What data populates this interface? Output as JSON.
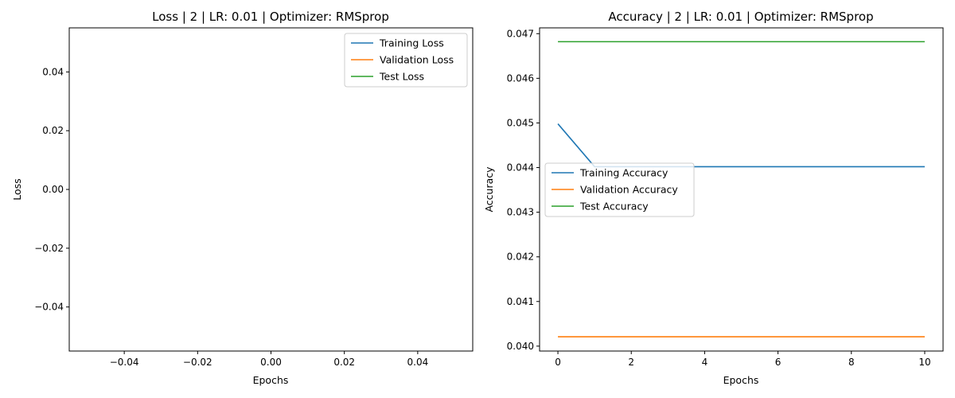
{
  "chart_data": [
    {
      "type": "line",
      "title": "Loss | 2 | LR: 0.01 | Optimizer: RMSprop",
      "xlabel": "Epochs",
      "ylabel": "Loss",
      "xlim": [
        -0.055,
        0.055
      ],
      "ylim": [
        -0.055,
        0.055
      ],
      "xticks": [
        -0.04,
        -0.02,
        0.0,
        0.02,
        0.04
      ],
      "xtick_labels": [
        "−0.04",
        "−0.02",
        "0.00",
        "0.02",
        "0.04"
      ],
      "yticks": [
        -0.04,
        -0.02,
        0.0,
        0.02,
        0.04
      ],
      "ytick_labels": [
        "−0.04",
        "−0.02",
        "0.00",
        "0.02",
        "0.04"
      ],
      "grid": false,
      "legend_position": "top-right",
      "series": [
        {
          "name": "Training Loss",
          "color": "#1f77b4",
          "x": [],
          "y": []
        },
        {
          "name": "Validation Loss",
          "color": "#ff7f0e",
          "x": [],
          "y": []
        },
        {
          "name": "Test Loss",
          "color": "#2ca02c",
          "x": [],
          "y": []
        }
      ]
    },
    {
      "type": "line",
      "title": "Accuracy | 2 | LR: 0.01 | Optimizer: RMSprop",
      "xlabel": "Epochs",
      "ylabel": "Accuracy",
      "xlim": [
        -0.5,
        10.5
      ],
      "ylim": [
        0.03989,
        0.04713
      ],
      "xticks": [
        0,
        2,
        4,
        6,
        8,
        10
      ],
      "xtick_labels": [
        "0",
        "2",
        "4",
        "6",
        "8",
        "10"
      ],
      "yticks": [
        0.04,
        0.041,
        0.042,
        0.043,
        0.044,
        0.045,
        0.046,
        0.047
      ],
      "ytick_labels": [
        "0.040",
        "0.041",
        "0.042",
        "0.043",
        "0.044",
        "0.045",
        "0.046",
        "0.047"
      ],
      "grid": false,
      "legend_position": "center-left",
      "series": [
        {
          "name": "Training Accuracy",
          "color": "#1f77b4",
          "x": [
            0,
            1,
            2,
            3,
            4,
            5,
            6,
            7,
            8,
            9,
            10
          ],
          "y": [
            0.04498,
            0.04402,
            0.04402,
            0.04402,
            0.04402,
            0.04402,
            0.04402,
            0.04402,
            0.04402,
            0.04402,
            0.04402
          ]
        },
        {
          "name": "Validation Accuracy",
          "color": "#ff7f0e",
          "x": [
            0,
            1,
            2,
            3,
            4,
            5,
            6,
            7,
            8,
            9,
            10
          ],
          "y": [
            0.04021,
            0.04021,
            0.04021,
            0.04021,
            0.04021,
            0.04021,
            0.04021,
            0.04021,
            0.04021,
            0.04021,
            0.04021
          ]
        },
        {
          "name": "Test Accuracy",
          "color": "#2ca02c",
          "x": [
            0,
            1,
            2,
            3,
            4,
            5,
            6,
            7,
            8,
            9,
            10
          ],
          "y": [
            0.04682,
            0.04682,
            0.04682,
            0.04682,
            0.04682,
            0.04682,
            0.04682,
            0.04682,
            0.04682,
            0.04682,
            0.04682
          ]
        }
      ]
    }
  ]
}
